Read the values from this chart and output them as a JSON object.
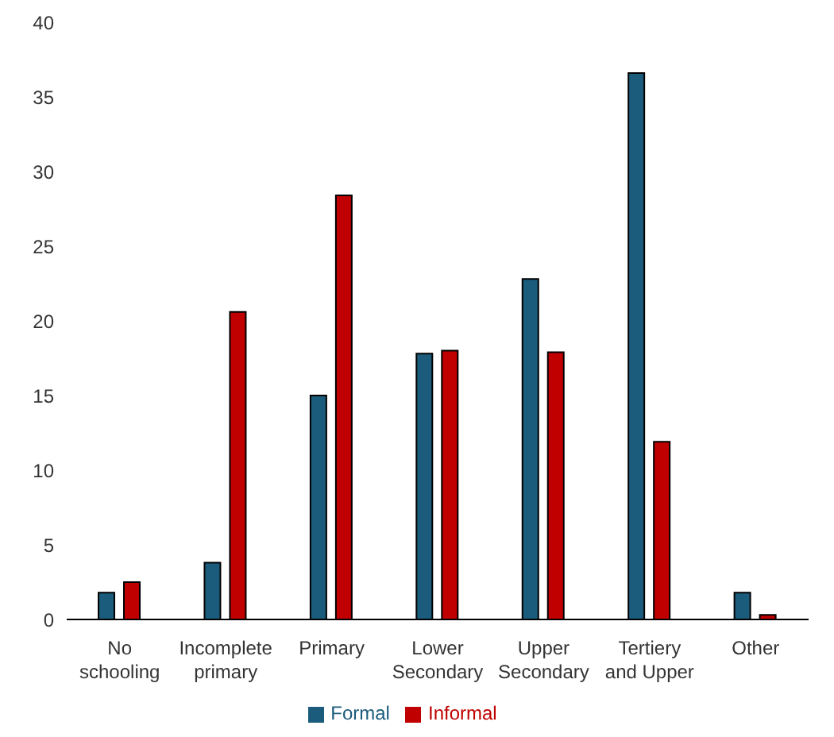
{
  "chart_data": {
    "type": "bar",
    "categories": [
      "No schooling",
      "Incomplete primary",
      "Primary",
      "Lower Secondary",
      "Upper Secondary",
      "Tertiery and Upper",
      "Other"
    ],
    "series": [
      {
        "name": "Formal",
        "color": "#1b5c7c",
        "values": [
          1.8,
          3.8,
          15.0,
          17.8,
          22.8,
          36.6,
          1.8
        ]
      },
      {
        "name": "Informal",
        "color": "#c00000",
        "values": [
          2.5,
          20.6,
          28.4,
          18.0,
          17.9,
          11.9,
          0.3
        ]
      }
    ],
    "ylim": [
      0,
      40
    ],
    "yticks": [
      0,
      5,
      10,
      15,
      20,
      25,
      30,
      35,
      40
    ],
    "grid": false,
    "legend": "bottom"
  }
}
